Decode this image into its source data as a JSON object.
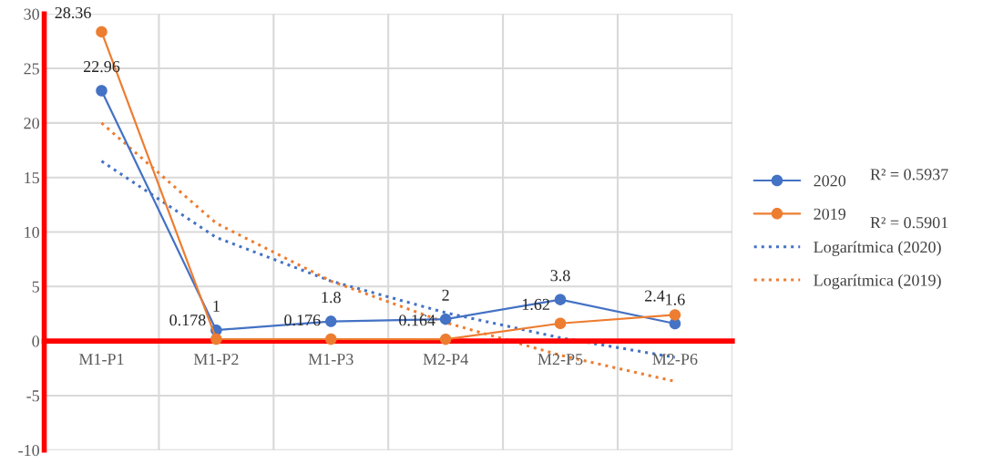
{
  "chart_data": {
    "type": "line",
    "categories": [
      "M1-P1",
      "M1-P2",
      "M1-P3",
      "M2-P4",
      "M2-P5",
      "M2-P6"
    ],
    "series": [
      {
        "name": "2020",
        "color": "#4472c4",
        "values": [
          22.96,
          1,
          1.8,
          2,
          3.8,
          1.6
        ],
        "value_labels": [
          "22.96",
          "1",
          "1.8",
          "2",
          "3.8",
          "1.6"
        ],
        "marker": "circle",
        "line_style": "solid"
      },
      {
        "name": "2019",
        "color": "#ed7d31",
        "values": [
          28.36,
          0.178,
          0.176,
          0.164,
          1.62,
          2.4
        ],
        "value_labels": [
          "28.36",
          "0.178",
          "0.176",
          "0.164",
          "1.62",
          "2.4"
        ],
        "marker": "circle",
        "line_style": "solid"
      },
      {
        "name": "Logarítmica (2020)",
        "color": "#4472c4",
        "values": [
          16.5,
          9.5,
          5.5,
          2.6,
          0.3,
          -1.5
        ],
        "marker": "none",
        "line_style": "dotted"
      },
      {
        "name": "Logarítmica (2019)",
        "color": "#ed7d31",
        "values": [
          20,
          10.8,
          5.5,
          1.7,
          -1.3,
          -3.7
        ],
        "marker": "none",
        "line_style": "dotted"
      }
    ],
    "ylim": [
      -10,
      30
    ],
    "yticks": [
      -10,
      -5,
      0,
      5,
      10,
      15,
      20,
      25,
      30
    ],
    "grid": true,
    "legend": "right",
    "annotations": [
      "R² = 0.5937",
      "R² = 0.5901"
    ]
  }
}
